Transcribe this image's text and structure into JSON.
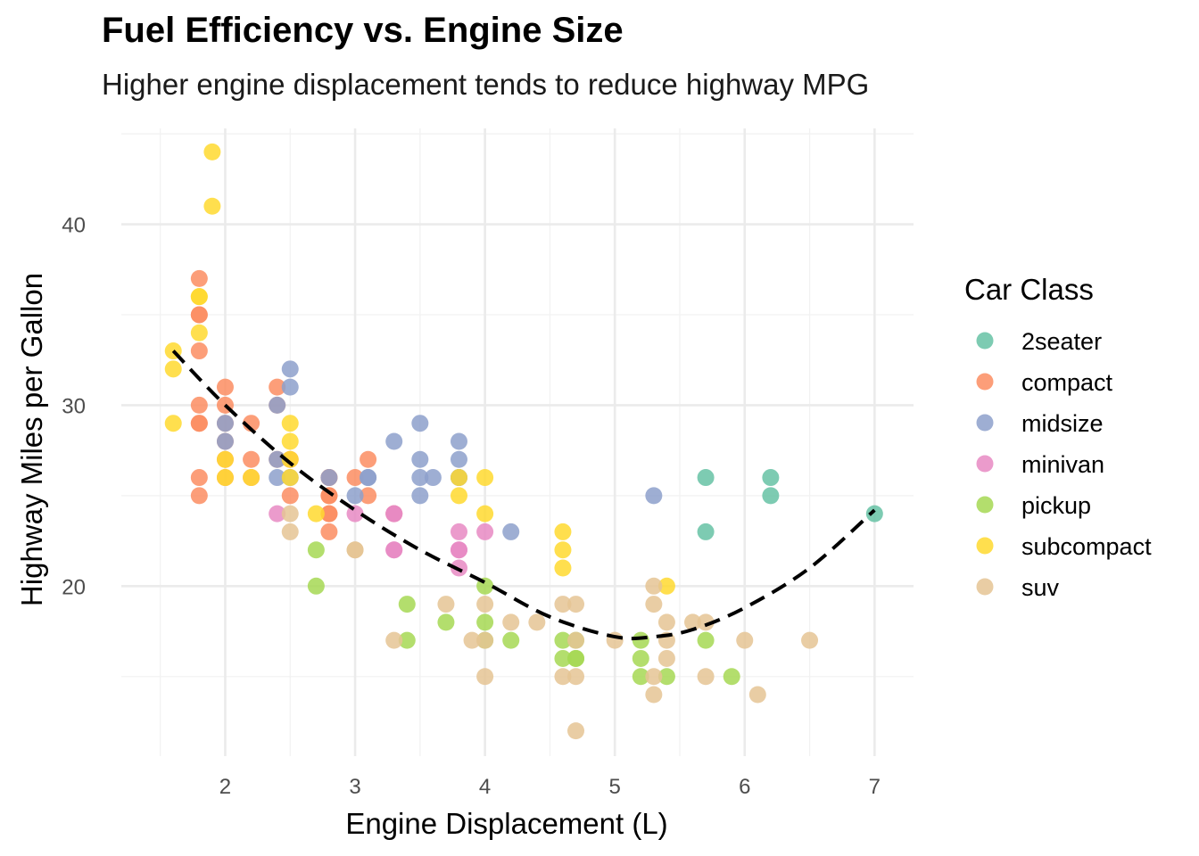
{
  "chart_data": {
    "type": "scatter",
    "title": "Fuel Efficiency vs. Engine Size",
    "subtitle": "Higher engine displacement tends to reduce highway MPG",
    "xlabel": "Engine Displacement (L)",
    "ylabel": "Highway Miles per Gallon",
    "xlim": [
      1.2,
      7.3
    ],
    "ylim": [
      10.6,
      45.3
    ],
    "x_ticks": [
      2,
      3,
      4,
      5,
      6,
      7
    ],
    "y_ticks": [
      20,
      30,
      40
    ],
    "grid": true,
    "legend": {
      "title": "Car Class",
      "placement": "right"
    },
    "trend": {
      "style": "dashed",
      "points": [
        [
          1.6,
          33.0
        ],
        [
          2.0,
          30.0
        ],
        [
          2.5,
          26.8
        ],
        [
          3.0,
          24.2
        ],
        [
          3.5,
          22.0
        ],
        [
          4.0,
          20.2
        ],
        [
          4.5,
          18.3
        ],
        [
          5.0,
          17.2
        ],
        [
          5.3,
          17.2
        ],
        [
          5.6,
          17.6
        ],
        [
          6.0,
          18.8
        ],
        [
          6.5,
          21.0
        ],
        [
          7.0,
          24.2
        ]
      ]
    },
    "series": [
      {
        "name": "2seater",
        "color": "#66c2a5",
        "points": [
          [
            5.7,
            26
          ],
          [
            5.7,
            23
          ],
          [
            6.2,
            26
          ],
          [
            6.2,
            25
          ],
          [
            7.0,
            24
          ]
        ]
      },
      {
        "name": "compact",
        "color": "#fc8d62",
        "points": [
          [
            1.8,
            29
          ],
          [
            1.8,
            29
          ],
          [
            2.0,
            31
          ],
          [
            2.0,
            30
          ],
          [
            2.8,
            26
          ],
          [
            2.8,
            26
          ],
          [
            3.1,
            27
          ],
          [
            1.8,
            26
          ],
          [
            1.8,
            25
          ],
          [
            2.0,
            28
          ],
          [
            2.0,
            27
          ],
          [
            2.8,
            25
          ],
          [
            2.8,
            25
          ],
          [
            3.1,
            25
          ],
          [
            2.2,
            26
          ],
          [
            2.2,
            27
          ],
          [
            2.4,
            30
          ],
          [
            2.4,
            31
          ],
          [
            3.0,
            26
          ],
          [
            1.8,
            33
          ],
          [
            1.8,
            35
          ],
          [
            1.8,
            37
          ],
          [
            1.8,
            35
          ],
          [
            2.0,
            29
          ],
          [
            2.0,
            26
          ],
          [
            2.5,
            27
          ],
          [
            2.5,
            25
          ],
          [
            2.8,
            24
          ],
          [
            2.8,
            23
          ],
          [
            3.3,
            24
          ],
          [
            1.8,
            30
          ],
          [
            2.2,
            29
          ],
          [
            2.4,
            27
          ],
          [
            2.8,
            24
          ]
        ]
      },
      {
        "name": "midsize",
        "color": "#8da0cb",
        "points": [
          [
            2.4,
            26
          ],
          [
            2.4,
            30
          ],
          [
            3.1,
            26
          ],
          [
            3.5,
            29
          ],
          [
            3.6,
            26
          ],
          [
            3.5,
            27
          ],
          [
            3.8,
            28
          ],
          [
            3.8,
            26
          ],
          [
            4.2,
            23
          ],
          [
            5.3,
            25
          ],
          [
            2.5,
            31
          ],
          [
            2.5,
            32
          ],
          [
            2.5,
            26
          ],
          [
            3.0,
            25
          ],
          [
            3.3,
            28
          ],
          [
            3.5,
            26
          ],
          [
            3.5,
            25
          ],
          [
            3.8,
            27
          ],
          [
            2.0,
            29
          ],
          [
            2.0,
            28
          ],
          [
            2.8,
            26
          ],
          [
            3.1,
            26
          ],
          [
            3.8,
            26
          ],
          [
            2.4,
            27
          ]
        ]
      },
      {
        "name": "minivan",
        "color": "#e78ac3",
        "points": [
          [
            2.4,
            24
          ],
          [
            3.0,
            24
          ],
          [
            3.3,
            22
          ],
          [
            3.3,
            22
          ],
          [
            3.3,
            24
          ],
          [
            3.8,
            22
          ],
          [
            3.8,
            21
          ],
          [
            3.8,
            23
          ],
          [
            4.0,
            23
          ],
          [
            3.8,
            22
          ],
          [
            3.3,
            24
          ]
        ]
      },
      {
        "name": "pickup",
        "color": "#a6d854",
        "points": [
          [
            2.7,
            20
          ],
          [
            2.7,
            22
          ],
          [
            3.4,
            17
          ],
          [
            3.4,
            19
          ],
          [
            3.7,
            18
          ],
          [
            4.0,
            18
          ],
          [
            4.0,
            20
          ],
          [
            4.2,
            17
          ],
          [
            4.6,
            17
          ],
          [
            4.7,
            16
          ],
          [
            4.7,
            17
          ],
          [
            4.7,
            16
          ],
          [
            5.2,
            16
          ],
          [
            5.2,
            15
          ],
          [
            5.7,
            17
          ],
          [
            5.9,
            15
          ],
          [
            4.0,
            17
          ],
          [
            4.6,
            16
          ],
          [
            5.4,
            15
          ],
          [
            5.2,
            17
          ]
        ]
      },
      {
        "name": "subcompact",
        "color": "#ffd92f",
        "points": [
          [
            1.6,
            33
          ],
          [
            1.6,
            32
          ],
          [
            1.6,
            29
          ],
          [
            1.8,
            34
          ],
          [
            1.8,
            36
          ],
          [
            1.9,
            44
          ],
          [
            1.9,
            41
          ],
          [
            2.0,
            27
          ],
          [
            2.0,
            26
          ],
          [
            2.2,
            26
          ],
          [
            2.5,
            29
          ],
          [
            2.5,
            28
          ],
          [
            2.5,
            26
          ],
          [
            2.5,
            27
          ],
          [
            2.7,
            24
          ],
          [
            3.8,
            26
          ],
          [
            3.8,
            25
          ],
          [
            4.0,
            26
          ],
          [
            4.0,
            24
          ],
          [
            4.6,
            23
          ],
          [
            4.6,
            22
          ],
          [
            4.6,
            21
          ],
          [
            5.4,
            20
          ],
          [
            1.8,
            36
          ]
        ]
      },
      {
        "name": "suv",
        "color": "#e5c494",
        "points": [
          [
            2.5,
            24
          ],
          [
            2.5,
            23
          ],
          [
            3.0,
            22
          ],
          [
            3.3,
            17
          ],
          [
            3.7,
            19
          ],
          [
            3.9,
            17
          ],
          [
            4.0,
            19
          ],
          [
            4.0,
            17
          ],
          [
            4.0,
            15
          ],
          [
            4.2,
            18
          ],
          [
            4.4,
            18
          ],
          [
            4.6,
            19
          ],
          [
            4.6,
            15
          ],
          [
            4.7,
            19
          ],
          [
            4.7,
            17
          ],
          [
            4.7,
            15
          ],
          [
            4.7,
            12
          ],
          [
            5.0,
            17
          ],
          [
            5.3,
            20
          ],
          [
            5.3,
            19
          ],
          [
            5.3,
            15
          ],
          [
            5.3,
            14
          ],
          [
            5.4,
            18
          ],
          [
            5.4,
            17
          ],
          [
            5.4,
            16
          ],
          [
            5.6,
            18
          ],
          [
            5.7,
            18
          ],
          [
            5.7,
            15
          ],
          [
            6.0,
            17
          ],
          [
            6.1,
            14
          ],
          [
            6.5,
            17
          ],
          [
            3.0,
            22
          ]
        ]
      }
    ]
  }
}
